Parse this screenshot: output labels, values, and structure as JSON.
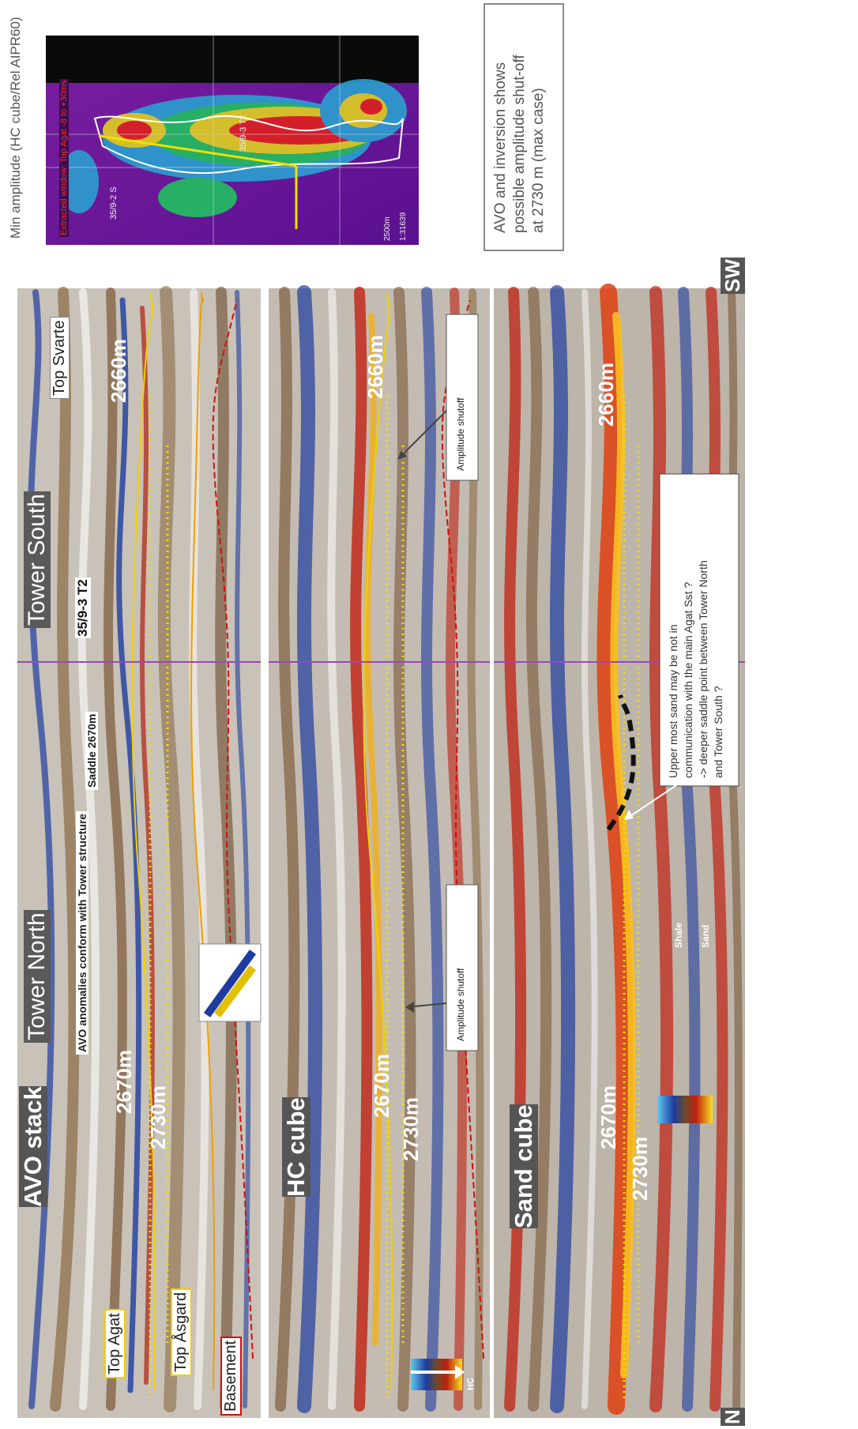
{
  "header": {
    "left_title": "Min amplitude (HC cube/Rel AIPR60)",
    "map_window": "Extracted window: Top Agat -8 to +30ms",
    "map_wells": [
      "35/9-2 S",
      "35/9-3 T2"
    ],
    "map_scale": [
      "2500m",
      "1:31639"
    ],
    "conclusion": "AVO and inversion shows\npossible amplitude shut-off\nat 2730 m (max case)"
  },
  "panels": {
    "avo": {
      "title": "AVO stack",
      "tower_north": "Tower North",
      "tower_south": "Tower South",
      "well": "35/9-3 T2",
      "note": "AVO anomalies conform with Tower structure",
      "saddle": "Saddle 2670m",
      "top_svarte": "Top Svarte",
      "top_agat": "Top Agat",
      "top_asgard": "Top Åsgard",
      "basement": "Basement",
      "depths": [
        "2670m",
        "2730m",
        "2660m"
      ]
    },
    "hc": {
      "title": "HC cube",
      "shutoff_left": "Amplitude shutoff",
      "shutoff_right": "Amplitude shutoff",
      "colorbar_label": "HC",
      "depths": [
        "2670m",
        "2730m",
        "2660m"
      ]
    },
    "sand": {
      "title": "Sand cube",
      "shale": "Shale",
      "sand": "Sand",
      "annotation": "Upper most sand may be not in\ncommunication with the main Agat Sst ?\n-> deeper saddle point between Tower North\nand Tower South ?",
      "depths": [
        "2670m",
        "2730m",
        "2660m"
      ],
      "dir_n": "N",
      "dir_sw": "SW"
    }
  },
  "colors": {
    "avo_bg": "#c9c2b8",
    "hc_bg": "#c4bcb3",
    "sand_bg": "#bdb4aa",
    "horizon_yellow": "#f0d000",
    "fault_red": "#d01010",
    "red_text": "#ff2a2a"
  }
}
